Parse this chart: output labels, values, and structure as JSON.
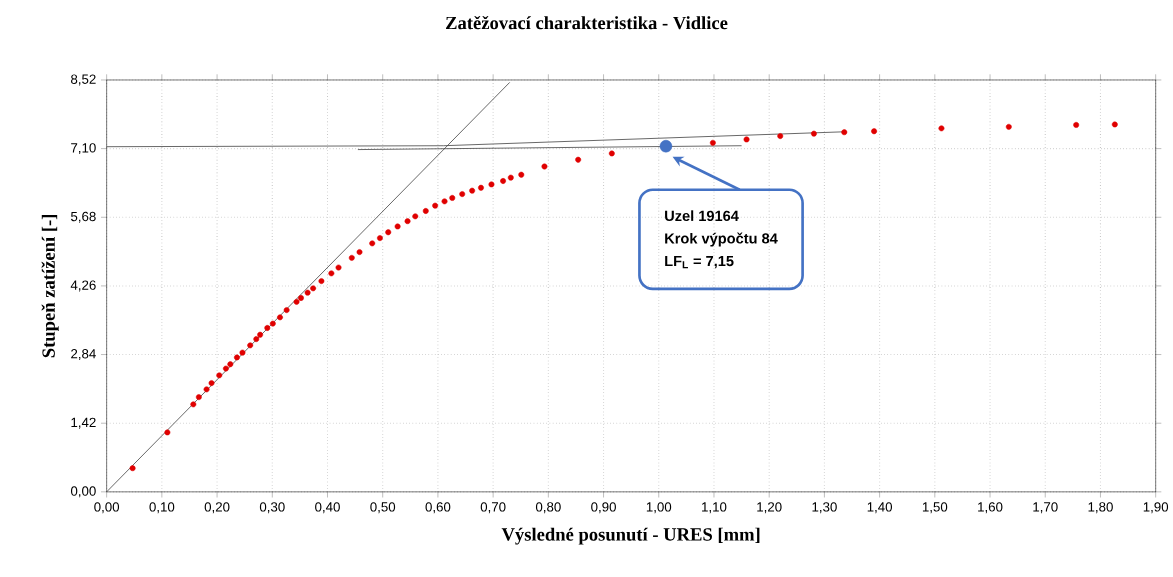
{
  "chart_data": {
    "type": "scatter",
    "title": "Zatěžovací charakteristika - Vidlice",
    "xlabel": "Výsledné posunutí - URES [mm]",
    "ylabel": "Stupeň zatížení [-]",
    "xlim": [
      0,
      1.9
    ],
    "ylim": [
      0,
      8.52
    ],
    "xticks": [
      {
        "value": 0,
        "label": "0,00"
      },
      {
        "value": 0.1,
        "label": "0,10"
      },
      {
        "value": 0.2,
        "label": "0,20"
      },
      {
        "value": 0.3,
        "label": "0,30"
      },
      {
        "value": 0.4,
        "label": "0,40"
      },
      {
        "value": 0.5,
        "label": "0,50"
      },
      {
        "value": 0.6,
        "label": "0,60"
      },
      {
        "value": 0.7,
        "label": "0,70"
      },
      {
        "value": 0.8,
        "label": "0,80"
      },
      {
        "value": 0.9,
        "label": "0,90"
      },
      {
        "value": 1.0,
        "label": "1,00"
      },
      {
        "value": 1.1,
        "label": "1,10"
      },
      {
        "value": 1.2,
        "label": "1,20"
      },
      {
        "value": 1.3,
        "label": "1,30"
      },
      {
        "value": 1.4,
        "label": "1,40"
      },
      {
        "value": 1.5,
        "label": "1,50"
      },
      {
        "value": 1.6,
        "label": "1,60"
      },
      {
        "value": 1.7,
        "label": "1,70"
      },
      {
        "value": 1.8,
        "label": "1,80"
      },
      {
        "value": 1.9,
        "label": "1,90"
      }
    ],
    "yticks": [
      {
        "value": 0,
        "label": "0,00"
      },
      {
        "value": 1.42,
        "label": "1,42"
      },
      {
        "value": 2.84,
        "label": "2,84"
      },
      {
        "value": 4.26,
        "label": "4,26"
      },
      {
        "value": 5.68,
        "label": "5,68"
      },
      {
        "value": 7.1,
        "label": "7,10"
      },
      {
        "value": 8.52,
        "label": "8,52"
      }
    ],
    "grid": true,
    "series": [
      {
        "color": "#e00000",
        "marker": "circle",
        "x": [
          0.047,
          0.11,
          0.157,
          0.167,
          0.181,
          0.19,
          0.204,
          0.216,
          0.224,
          0.236,
          0.246,
          0.26,
          0.271,
          0.278,
          0.291,
          0.301,
          0.314,
          0.326,
          0.344,
          0.352,
          0.364,
          0.374,
          0.389,
          0.407,
          0.42,
          0.444,
          0.458,
          0.481,
          0.495,
          0.51,
          0.527,
          0.545,
          0.559,
          0.578,
          0.595,
          0.612,
          0.626,
          0.644,
          0.662,
          0.678,
          0.697,
          0.718,
          0.732,
          0.751,
          0.793,
          0.854,
          0.915,
          1.098,
          1.159,
          1.22,
          1.281,
          1.336,
          1.39,
          1.512,
          1.634,
          1.756,
          1.826
        ],
        "values": [
          0.49,
          1.23,
          1.81,
          1.96,
          2.12,
          2.25,
          2.41,
          2.55,
          2.64,
          2.78,
          2.88,
          3.03,
          3.16,
          3.25,
          3.39,
          3.48,
          3.61,
          3.76,
          3.93,
          4.01,
          4.12,
          4.21,
          4.36,
          4.52,
          4.64,
          4.84,
          4.96,
          5.14,
          5.25,
          5.37,
          5.49,
          5.6,
          5.7,
          5.81,
          5.92,
          6.01,
          6.08,
          6.16,
          6.23,
          6.29,
          6.36,
          6.43,
          6.5,
          6.56,
          6.73,
          6.87,
          7.0,
          7.22,
          7.29,
          7.36,
          7.41,
          7.44,
          7.46,
          7.52,
          7.55,
          7.59,
          7.6
        ]
      },
      {
        "type": "line",
        "marker": "none",
        "color": "#404040",
        "x": [
          0,
          0.73
        ],
        "values": [
          0,
          8.47
        ]
      },
      {
        "type": "line",
        "marker": "none",
        "color": "#404040",
        "x": [
          0,
          0.61,
          1.34
        ],
        "values": [
          7.14,
          7.16,
          7.45
        ]
      },
      {
        "type": "line",
        "marker": "none",
        "color": "#404040",
        "x": [
          0.455,
          1.15
        ],
        "values": [
          7.08,
          7.16
        ]
      },
      {
        "type": "scatter",
        "marker": "circle",
        "color": "#4472c4",
        "x": [
          1.013
        ],
        "values": [
          7.15
        ]
      }
    ],
    "annotations": [
      "Uzel 19164",
      "Krok výpočtu 84",
      "LF$_{L}$ = 7,15"
    ]
  }
}
